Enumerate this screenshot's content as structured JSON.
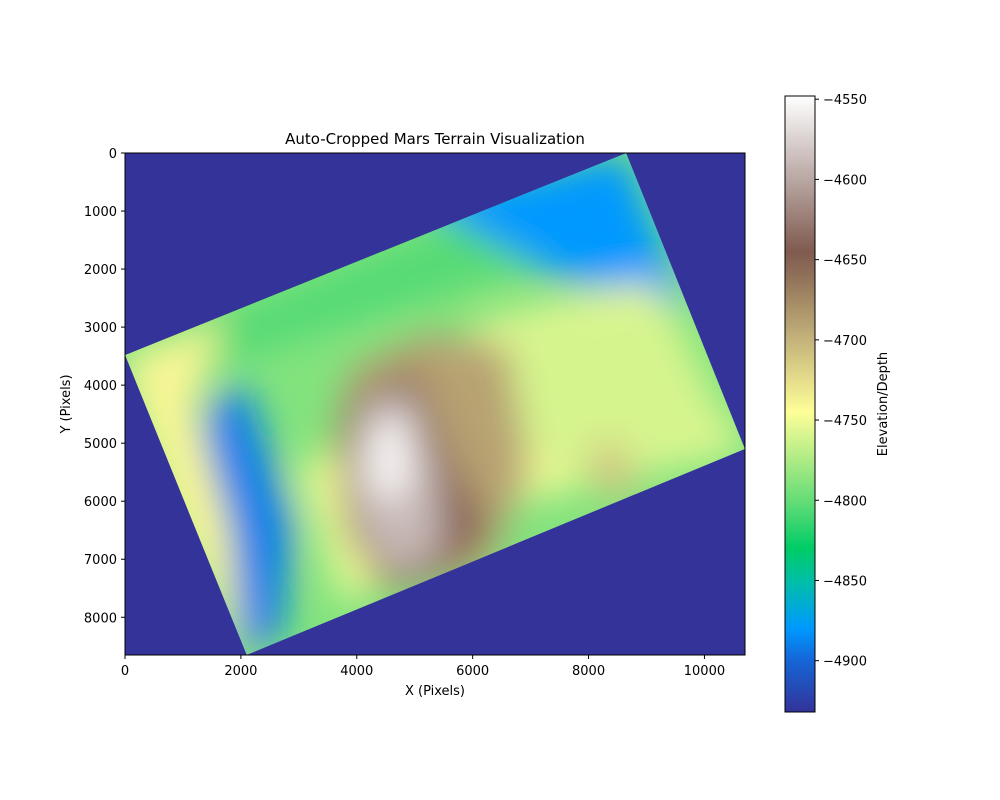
{
  "chart_data": {
    "type": "heatmap",
    "title": "Auto-Cropped Mars Terrain Visualization",
    "xlabel": "X (Pixels)",
    "ylabel": "Y (Pixels)",
    "xlim": [
      0,
      10700
    ],
    "ylim": [
      8650,
      0
    ],
    "x_ticks": [
      0,
      2000,
      4000,
      6000,
      8000,
      10000
    ],
    "y_ticks": [
      0,
      1000,
      2000,
      3000,
      4000,
      5000,
      6000,
      7000,
      8000
    ],
    "colormap": "terrain",
    "background_color": "#333399",
    "grid": false,
    "colorbar": {
      "label": "Elevation/Depth",
      "range": [
        -4932,
        -4548
      ],
      "ticks": [
        -4550,
        -4600,
        -4650,
        -4700,
        -4750,
        -4800,
        -4850,
        -4900
      ],
      "tick_labels": [
        "−4550",
        "−4600",
        "−4650",
        "−4700",
        "−4750",
        "−4800",
        "−4850",
        "−4900"
      ],
      "stops": [
        {
          "value": -4932,
          "color": "#333399"
        },
        {
          "value": -4900,
          "color": "#1565d6"
        },
        {
          "value": -4880,
          "color": "#0099ff"
        },
        {
          "value": -4850,
          "color": "#00bfa6"
        },
        {
          "value": -4830,
          "color": "#00cc66"
        },
        {
          "value": -4800,
          "color": "#66dd77"
        },
        {
          "value": -4770,
          "color": "#bbee88"
        },
        {
          "value": -4745,
          "color": "#fefe98"
        },
        {
          "value": -4700,
          "color": "#c4b37a"
        },
        {
          "value": -4660,
          "color": "#8f7059"
        },
        {
          "value": -4645,
          "color": "#805a4f"
        },
        {
          "value": -4600,
          "color": "#b9a7a3"
        },
        {
          "value": -4548,
          "color": "#ffffff"
        }
      ]
    },
    "terrain_footprint": [
      [
        0,
        3480
      ],
      [
        8650,
        0
      ],
      [
        10700,
        5100
      ],
      [
        2100,
        8650
      ]
    ],
    "terrain_bands": [
      {
        "name": "upper-edge-band",
        "value": -4805,
        "points": [
          [
            0,
            3480
          ],
          [
            8650,
            0
          ],
          [
            9700,
            2650
          ],
          [
            6800,
            2000
          ],
          [
            1500,
            3700
          ]
        ]
      },
      {
        "name": "upper-right-high-band",
        "value": -4880,
        "points": [
          [
            5000,
            800
          ],
          [
            8650,
            0
          ],
          [
            9700,
            2650
          ],
          [
            7500,
            2150
          ]
        ]
      },
      {
        "name": "lower-left-low-band",
        "value": -4890,
        "points": [
          [
            1400,
            4300
          ],
          [
            2100,
            4000
          ],
          [
            2900,
            6400
          ],
          [
            2700,
            8300
          ],
          [
            2100,
            8650
          ],
          [
            1300,
            6400
          ]
        ]
      },
      {
        "name": "left-ridge",
        "value": -4740,
        "points": [
          [
            0,
            3480
          ],
          [
            1700,
            2900
          ],
          [
            1200,
            4400
          ],
          [
            1800,
            6500
          ],
          [
            2000,
            8600
          ],
          [
            800,
            6300
          ],
          [
            100,
            4200
          ]
        ]
      },
      {
        "name": "central-plain",
        "value": -4750,
        "points": [
          [
            3000,
            5500
          ],
          [
            6200,
            2900
          ],
          [
            9000,
            2200
          ],
          [
            10700,
            5100
          ],
          [
            6000,
            6200
          ],
          [
            3800,
            7800
          ]
        ]
      },
      {
        "name": "east-plain",
        "value": -4760,
        "points": [
          [
            6500,
            3000
          ],
          [
            9300,
            2400
          ],
          [
            10500,
            4900
          ],
          [
            7800,
            5800
          ],
          [
            6800,
            4800
          ]
        ]
      },
      {
        "name": "crater-rim",
        "value": -4690,
        "points": [
          [
            3900,
            3700
          ],
          [
            5200,
            3100
          ],
          [
            6600,
            3300
          ],
          [
            7000,
            5500
          ],
          [
            6200,
            7200
          ],
          [
            4500,
            7600
          ],
          [
            3800,
            6600
          ],
          [
            3600,
            4800
          ]
        ]
      },
      {
        "name": "crater-floor-dark",
        "value": -4650,
        "points": [
          [
            4000,
            4200
          ],
          [
            5000,
            3700
          ],
          [
            5600,
            5200
          ],
          [
            6300,
            6500
          ],
          [
            5600,
            7200
          ],
          [
            4700,
            7500
          ],
          [
            3900,
            6600
          ],
          [
            3800,
            5000
          ]
        ]
      },
      {
        "name": "central-mound",
        "value": -4590,
        "points": [
          [
            4200,
            4300
          ],
          [
            4900,
            4100
          ],
          [
            5400,
            5600
          ],
          [
            5500,
            6800
          ],
          [
            4800,
            7300
          ],
          [
            4100,
            6700
          ],
          [
            3900,
            5400
          ]
        ]
      },
      {
        "name": "mound-peak",
        "value": -4552,
        "points": [
          [
            4250,
            4700
          ],
          [
            4800,
            4500
          ],
          [
            4950,
            5600
          ],
          [
            4600,
            6100
          ],
          [
            4200,
            5700
          ]
        ]
      },
      {
        "name": "east-knob",
        "value": -4710,
        "points": [
          [
            7900,
            5200
          ],
          [
            8500,
            4900
          ],
          [
            8900,
            5800
          ],
          [
            8300,
            6000
          ]
        ]
      }
    ]
  }
}
